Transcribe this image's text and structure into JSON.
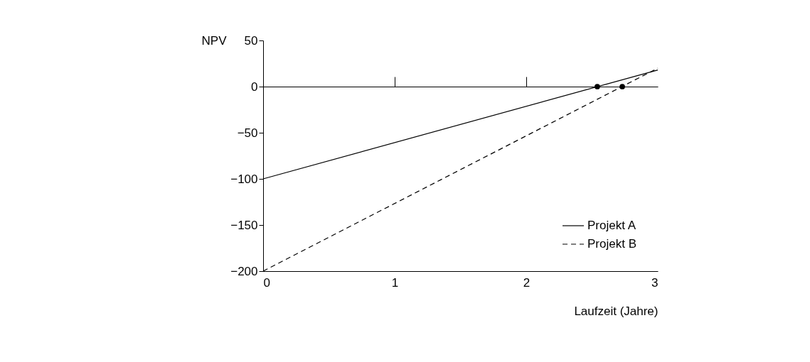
{
  "chart_data": {
    "type": "line",
    "xlabel": "Laufzeit (Jahre)",
    "ylabel": "NPV",
    "xlim": [
      0,
      3
    ],
    "xticks": [
      0,
      1,
      2,
      3
    ],
    "ylim": [
      -200,
      50
    ],
    "yticks": [
      {
        "value": 50,
        "label": "50"
      },
      {
        "value": 0,
        "label": "0"
      },
      {
        "value": -50,
        "label": "−50"
      },
      {
        "value": -100,
        "label": "−100"
      },
      {
        "value": -150,
        "label": "−150"
      },
      {
        "value": -200,
        "label": "−200"
      }
    ],
    "x": [
      0,
      3
    ],
    "series": [
      {
        "name": "Projekt A",
        "color": "#000000",
        "line_style": "solid",
        "values": [
          -100,
          18
        ]
      },
      {
        "name": "Projekt B",
        "color": "#000000",
        "line_style": "dashed",
        "values": [
          -200,
          20
        ]
      },
      {
        "type": "scatter",
        "color": "#000000",
        "marker": "circle",
        "x": [
          2.54,
          2.73
        ],
        "values": [
          0,
          0
        ]
      }
    ],
    "ref_lines": [
      {
        "axis": "y",
        "value": 0
      }
    ],
    "legend": "bottom right",
    "grid": false
  }
}
